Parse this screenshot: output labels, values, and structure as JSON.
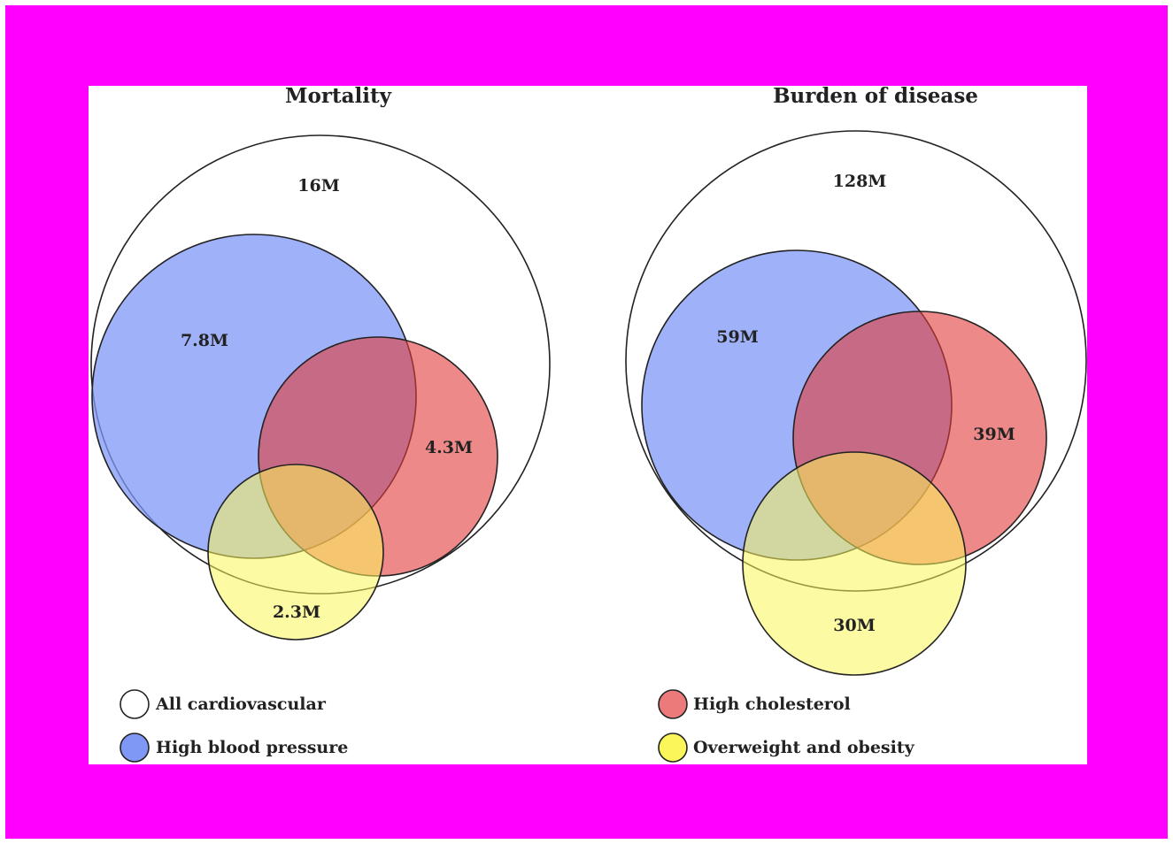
{
  "colors": {
    "frame": "#ff00ff",
    "panel": "#ffffff",
    "all_cardiovascular": "#ffffff",
    "high_blood_pressure": "#7f97f5",
    "high_cholesterol": "#e23a3a",
    "overweight_obesity": "#fbf65a"
  },
  "panels": [
    {
      "title": "Mortality",
      "labels": {
        "all_cardiovascular": "16M",
        "high_blood_pressure": "7.8M",
        "high_cholesterol": "4.3M",
        "overweight_obesity": "2.3M"
      }
    },
    {
      "title": "Burden of disease",
      "labels": {
        "all_cardiovascular": "128M",
        "high_blood_pressure": "59M",
        "high_cholesterol": "39M",
        "overweight_obesity": "30M"
      }
    }
  ],
  "legend": {
    "all_cardiovascular": "All cardiovascular",
    "high_blood_pressure": "High blood pressure",
    "high_cholesterol": "High cholesterol",
    "overweight_obesity": "Overweight and obesity"
  }
}
